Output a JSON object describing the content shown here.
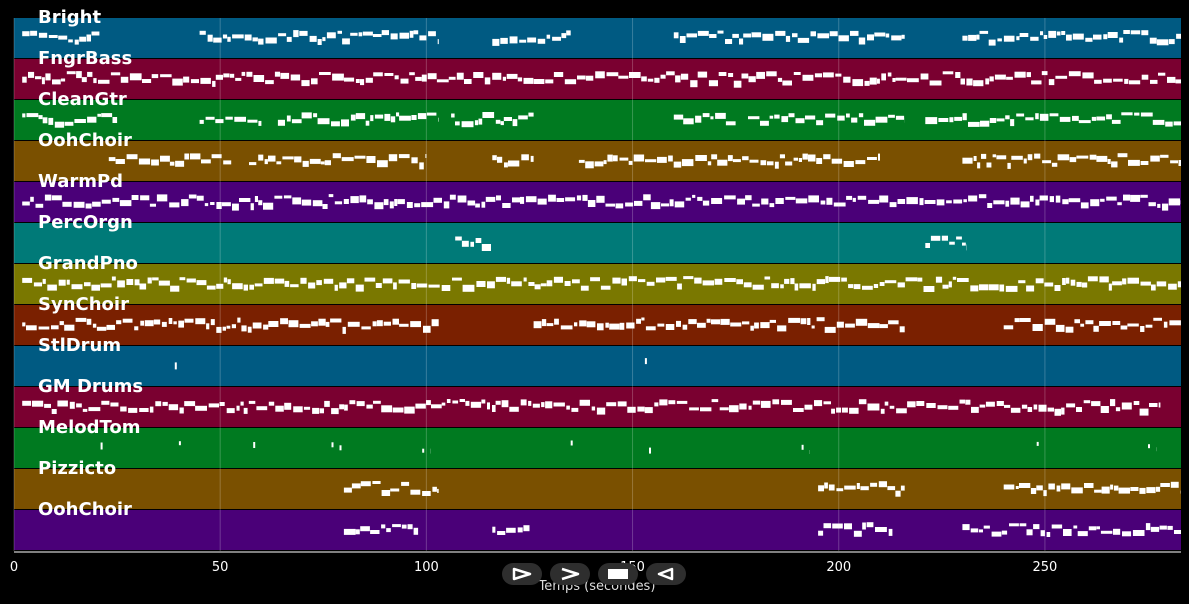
{
  "tracks": [
    {
      "name": "Bright",
      "color": "#005a82"
    },
    {
      "name": "FngrBass",
      "color": "#7a0030"
    },
    {
      "name": "CleanGtr",
      "color": "#007a20"
    },
    {
      "name": "OohChoir",
      "color": "#7a5000"
    },
    {
      "name": "WarmPd",
      "color": "#4a0078"
    },
    {
      "name": "PercOrgn",
      "color": "#007a78"
    },
    {
      "name": "GrandPno",
      "color": "#7a7800"
    },
    {
      "name": "SynChoir",
      "color": "#7a2000"
    },
    {
      "name": "StlDrum",
      "color": "#005a82"
    },
    {
      "name": "GM Drums",
      "color": "#7a0030"
    },
    {
      "name": "MelodTom",
      "color": "#007a20"
    },
    {
      "name": "Pizzicto",
      "color": "#7a5000"
    },
    {
      "name": "OohChoir",
      "color": "#4a0078"
    }
  ],
  "axis": {
    "xlabel": "Temps (secondes)",
    "ticks": [
      0,
      50,
      100,
      150,
      200,
      250
    ],
    "xmax": 283
  },
  "note_segments": [
    [
      [
        2,
        21
      ],
      [
        45,
        103
      ],
      [
        116,
        135
      ],
      [
        160,
        216
      ],
      [
        230,
        283
      ]
    ],
    [
      [
        2,
        283
      ]
    ],
    [
      [
        2,
        25
      ],
      [
        45,
        60
      ],
      [
        64,
        103
      ],
      [
        106,
        126
      ],
      [
        160,
        175
      ],
      [
        178,
        216
      ],
      [
        221,
        283
      ]
    ],
    [
      [
        23,
        53
      ],
      [
        57,
        100
      ],
      [
        116,
        126
      ],
      [
        137,
        210
      ],
      [
        230,
        283
      ]
    ],
    [
      [
        2,
        283
      ]
    ],
    [
      [
        107,
        116
      ],
      [
        221,
        231
      ]
    ],
    [
      [
        2,
        283
      ]
    ],
    [
      [
        2,
        103
      ],
      [
        126,
        216
      ],
      [
        240,
        283
      ]
    ],
    [
      [
        39,
        40
      ],
      [
        153,
        154
      ]
    ],
    [
      [
        2,
        278
      ]
    ],
    [
      [
        21,
        22
      ],
      [
        40,
        41
      ],
      [
        58,
        59
      ],
      [
        77,
        80
      ],
      [
        99,
        101
      ],
      [
        135,
        136
      ],
      [
        154,
        155
      ],
      [
        191,
        193
      ],
      [
        248,
        249
      ],
      [
        275,
        277
      ]
    ],
    [
      [
        80,
        103
      ],
      [
        195,
        216
      ],
      [
        240,
        283
      ]
    ],
    [
      [
        80,
        98
      ],
      [
        116,
        125
      ],
      [
        195,
        213
      ],
      [
        230,
        283
      ]
    ]
  ],
  "controls": [
    {
      "name": "play-from-start-button",
      "icon": "play-outline-icon"
    },
    {
      "name": "play-button",
      "icon": "play-chevron-icon"
    },
    {
      "name": "stop-button",
      "icon": "stop-icon"
    },
    {
      "name": "rewind-button",
      "icon": "rewind-icon"
    }
  ]
}
